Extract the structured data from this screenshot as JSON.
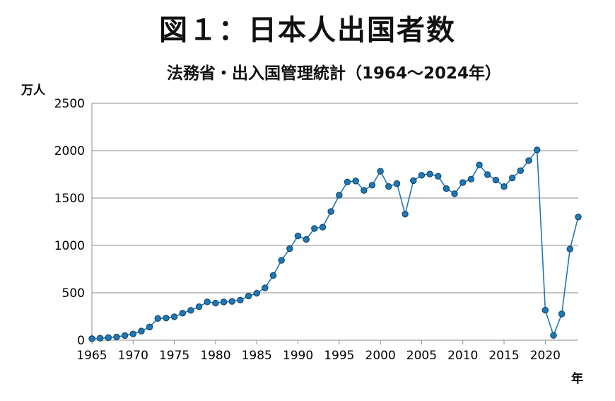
{
  "chart_data": {
    "type": "line",
    "title": "図１：日本人出国者数",
    "subtitle": "法務省・出入国管理統計（1964～2024年）",
    "ylabel": "万人",
    "xlabel": "年",
    "xlim": [
      1965,
      2024
    ],
    "ylim": [
      0,
      2500
    ],
    "yticks": [
      0,
      500,
      1000,
      1500,
      2000,
      2500
    ],
    "xticks": [
      1965,
      1970,
      1975,
      1980,
      1985,
      1990,
      1995,
      2000,
      2005,
      2010,
      2015,
      2020
    ],
    "grid": true,
    "legend": "none",
    "color": "#1f77b4",
    "series": [
      {
        "x": [
          1965,
          1966,
          1967,
          1968,
          1969,
          1970,
          1971,
          1972,
          1973,
          1974,
          1975,
          1976,
          1977,
          1978,
          1979,
          1980,
          1981,
          1982,
          1983,
          1984,
          1985,
          1986,
          1987,
          1988,
          1989,
          1990,
          1991,
          1992,
          1993,
          1994,
          1995,
          1996,
          1997,
          1998,
          1999,
          2000,
          2001,
          2002,
          2003,
          2004,
          2005,
          2006,
          2007,
          2008,
          2009,
          2010,
          2011,
          2012,
          2013,
          2014,
          2015,
          2016,
          2017,
          2018,
          2019,
          2020,
          2021,
          2022,
          2023,
          2024
        ],
        "values": [
          16,
          21,
          27,
          34,
          49,
          66,
          96,
          139,
          229,
          234,
          247,
          285,
          315,
          353,
          404,
          391,
          403,
          409,
          423,
          466,
          495,
          552,
          683,
          843,
          966,
          1100,
          1063,
          1179,
          1193,
          1358,
          1530,
          1669,
          1680,
          1581,
          1636,
          1782,
          1622,
          1652,
          1330,
          1683,
          1740,
          1753,
          1730,
          1599,
          1545,
          1664,
          1699,
          1849,
          1747,
          1690,
          1621,
          1712,
          1789,
          1895,
          2008,
          317,
          51,
          277,
          962,
          1300
        ]
      }
    ]
  }
}
